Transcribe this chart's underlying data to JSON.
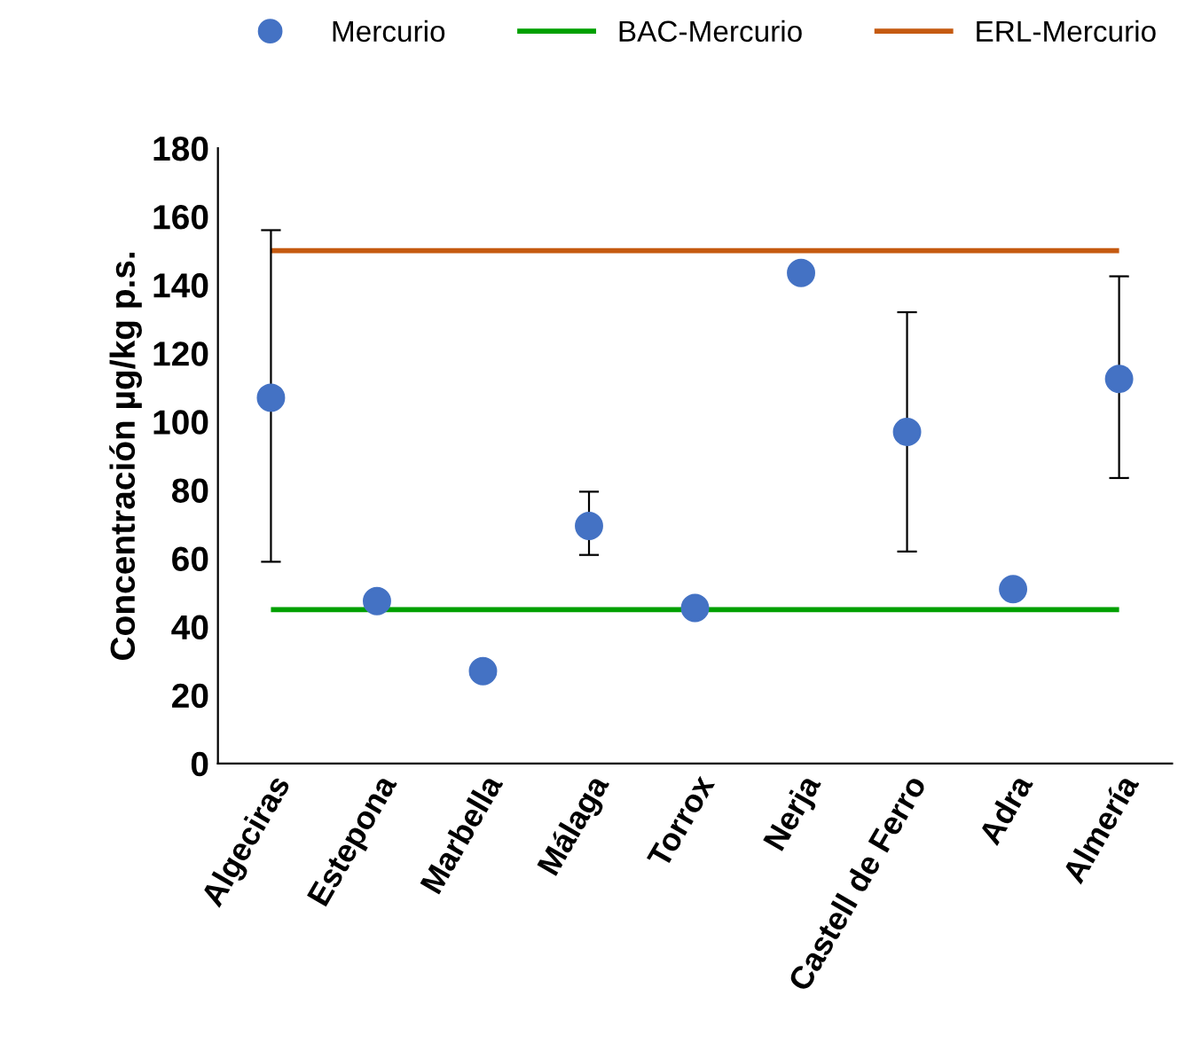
{
  "chart_data": {
    "type": "scatter",
    "ylabel": "Concentración µg/kg p.s.",
    "categories": [
      "Algeciras",
      "Estepona",
      "Marbella",
      "Málaga",
      "Torrox",
      "Nerja",
      "Castell de Ferro",
      "Adra",
      "Almería"
    ],
    "series": [
      {
        "name": "Mercurio",
        "color": "#4472c4",
        "values": [
          107,
          47.5,
          27,
          69.5,
          45.5,
          143.5,
          97,
          51,
          112.5
        ],
        "errors": [
          [
            59,
            156
          ],
          null,
          null,
          [
            61,
            79.5
          ],
          null,
          null,
          [
            62,
            132
          ],
          null,
          [
            83.5,
            142.5
          ]
        ]
      }
    ],
    "ref_lines": [
      {
        "axis": "y",
        "value": 45,
        "label": "BAC-Mercurio",
        "color": "#00a000"
      },
      {
        "axis": "y",
        "value": 150,
        "label": "ERL-Mercurio",
        "color": "#c55a11"
      }
    ],
    "ylim": [
      0,
      180
    ],
    "yticks": [
      0,
      20,
      40,
      60,
      80,
      100,
      120,
      140,
      160,
      180
    ],
    "marker": "circle",
    "grid": false,
    "legend": "top"
  }
}
